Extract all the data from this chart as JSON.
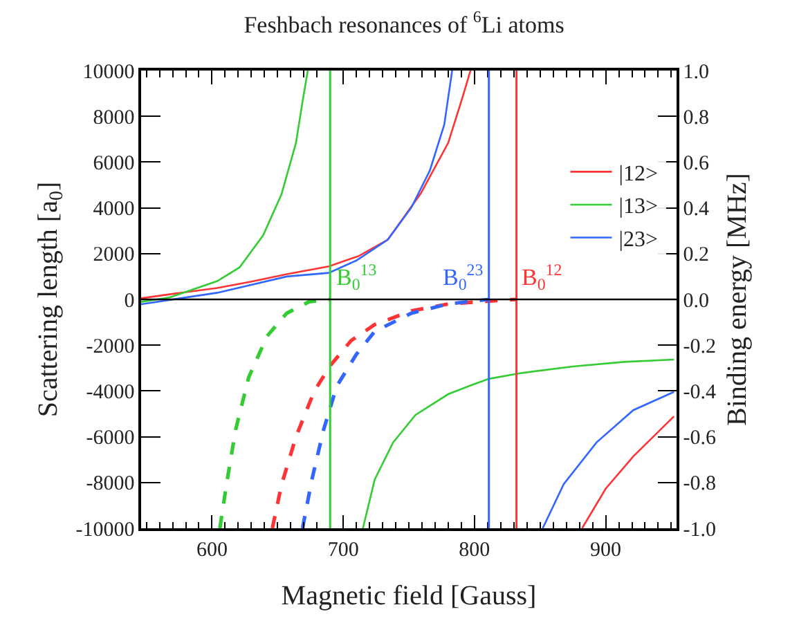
{
  "chart_data": {
    "type": "line",
    "title": "Feshbach resonances of $^{6}$Li atoms",
    "xlabel": "Magnetic field [Gauss]",
    "ylabel": "Scattering length [a$_{0}$]",
    "y2label": "Binding energy [MHz]",
    "xlim": [
      546,
      954
    ],
    "xticks": [
      600,
      700,
      800,
      900
    ],
    "ylim": [
      -10000,
      10000
    ],
    "yticks": [
      -10000,
      -8000,
      -6000,
      -4000,
      -2000,
      0,
      2000,
      4000,
      6000,
      8000,
      10000
    ],
    "y2lim": [
      -1,
      1
    ],
    "y2ticks": [
      {
        "value": -1,
        "label": "-1.0"
      },
      {
        "value": -0.8,
        "label": "-0.8"
      },
      {
        "value": -0.6,
        "label": "-0.6"
      },
      {
        "value": -0.4,
        "label": "-0.4"
      },
      {
        "value": -0.2,
        "label": "-0.2"
      },
      {
        "value": 0,
        "label": "0.0"
      },
      {
        "value": 0.2,
        "label": "0.2"
      },
      {
        "value": 0.4,
        "label": "0.4"
      },
      {
        "value": 0.6,
        "label": "0.6"
      },
      {
        "value": 0.8,
        "label": "0.8"
      },
      {
        "value": 1,
        "label": "1.0"
      }
    ],
    "grid": false,
    "legend": "top right",
    "marker": "none",
    "line_style": "solid",
    "series": [
      {
        "name": "|12>",
        "color": "#ff3333",
        "x": [
          546,
          575,
          604,
          630,
          657,
          689,
          712,
          734,
          759,
          780,
          791,
          797,
          832,
          882,
          900,
          921,
          952
        ],
        "values": [
          50,
          280,
          500,
          780,
          1100,
          1440,
          1900,
          2610,
          4620,
          6840,
          8850,
          10000,
          null,
          -10000,
          -8270,
          -6860,
          -5110
        ]
      },
      {
        "name": "|13>",
        "color": "#33cc33",
        "x": [
          546,
          568,
          604,
          621,
          639,
          653,
          664,
          669,
          673,
          690,
          715,
          724,
          738,
          755,
          780,
          798,
          811,
          834,
          875,
          914,
          952
        ],
        "values": [
          -110,
          90,
          800,
          1400,
          2800,
          4600,
          6840,
          8650,
          10000,
          null,
          -10000,
          -7870,
          -6250,
          -5050,
          -4140,
          -3740,
          -3470,
          -3230,
          -2930,
          -2730,
          -2630
        ]
      },
      {
        "name": "|23>",
        "color": "#3366ff",
        "x": [
          546,
          604,
          657,
          689,
          710,
          734,
          752,
          766,
          777,
          783,
          811,
          852,
          868,
          893,
          921,
          952
        ],
        "values": [
          -210,
          290,
          1000,
          1160,
          1700,
          2610,
          4020,
          5630,
          7640,
          10000,
          null,
          -10000,
          -8070,
          -6250,
          -4840,
          -4040
        ]
      },
      {
        "color": "#33cc33",
        "axis": "y2",
        "line_style": "dashed",
        "x": [
          606,
          611,
          618,
          628,
          642,
          657,
          674,
          690
        ],
        "values": [
          -1.0,
          -0.81,
          -0.57,
          -0.34,
          -0.16,
          -0.06,
          -0.01,
          0
        ]
      },
      {
        "color": "#ff3333",
        "axis": "y2",
        "line_style": "dashed",
        "x": [
          646,
          653,
          664,
          678,
          690,
          706,
          724,
          752,
          780,
          805,
          832
        ],
        "values": [
          -1.0,
          -0.81,
          -0.6,
          -0.4,
          -0.29,
          -0.18,
          -0.11,
          -0.05,
          -0.02,
          -0.01,
          0
        ]
      },
      {
        "color": "#3366ff",
        "axis": "y2",
        "line_style": "dashed",
        "x": [
          669,
          676,
          685,
          695,
          710,
          724,
          752,
          780,
          811
        ],
        "values": [
          -1.0,
          -0.79,
          -0.57,
          -0.38,
          -0.24,
          -0.14,
          -0.06,
          -0.02,
          0
        ]
      }
    ],
    "ref_lines": [
      {
        "axis": "x",
        "value": 690,
        "label": "B$_{0}$$^{13}$",
        "color": "#33cc33"
      },
      {
        "axis": "x",
        "value": 811,
        "label": "B$_{0}$$^{23}$",
        "color": "#3366ff"
      },
      {
        "axis": "x",
        "value": 832,
        "label": "B$_{0}$$^{12}$",
        "color": "#ff3333"
      },
      {
        "axis": "y",
        "value": 0,
        "color": "#000000"
      }
    ]
  }
}
